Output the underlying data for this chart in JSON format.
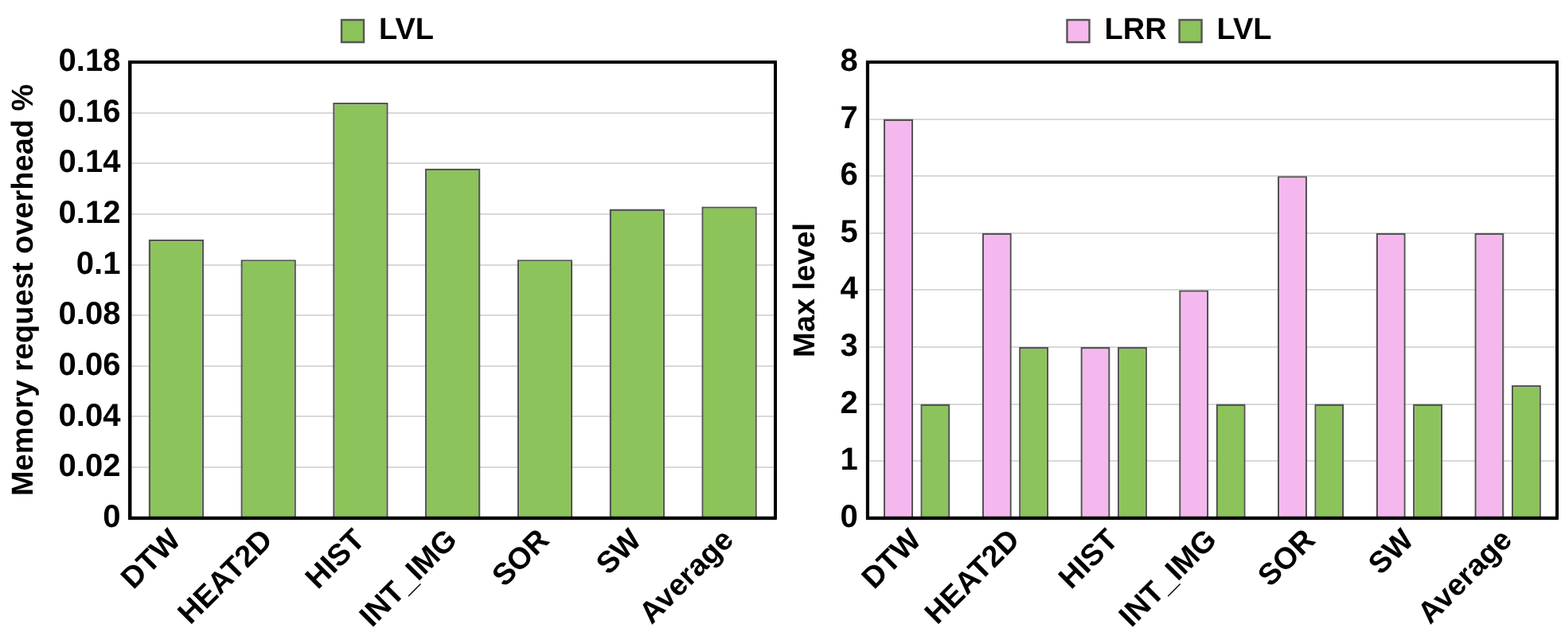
{
  "chart_data": [
    {
      "type": "bar",
      "ylabel": "Memory request overhead %",
      "categories": [
        "DTW",
        "HEAT2D",
        "HIST",
        "INT_IMG",
        "SOR",
        "SW",
        "Average"
      ],
      "series": [
        {
          "name": "LVL",
          "color": "#8cc35a",
          "values": [
            0.11,
            0.102,
            0.164,
            0.138,
            0.102,
            0.122,
            0.123
          ]
        }
      ],
      "ylim": [
        0,
        0.18
      ],
      "yticks": [
        0,
        0.02,
        0.04,
        0.06,
        0.08,
        0.1,
        0.12,
        0.14,
        0.16,
        0.18
      ],
      "grid": "y",
      "legend": "top"
    },
    {
      "type": "bar",
      "ylabel": "Max level",
      "categories": [
        "DTW",
        "HEAT2D",
        "HIST",
        "INT_IMG",
        "SOR",
        "SW",
        "Average"
      ],
      "series": [
        {
          "name": "LRR",
          "color": "#f5b8ee",
          "values": [
            7,
            5,
            3,
            4,
            6,
            5,
            5
          ]
        },
        {
          "name": "LVL",
          "color": "#8cc35a",
          "values": [
            2,
            3,
            3,
            2,
            2,
            2,
            2.33
          ]
        }
      ],
      "ylim": [
        0,
        8
      ],
      "yticks": [
        0,
        1,
        2,
        3,
        4,
        5,
        6,
        7,
        8
      ],
      "grid": "y",
      "legend": "top"
    }
  ]
}
